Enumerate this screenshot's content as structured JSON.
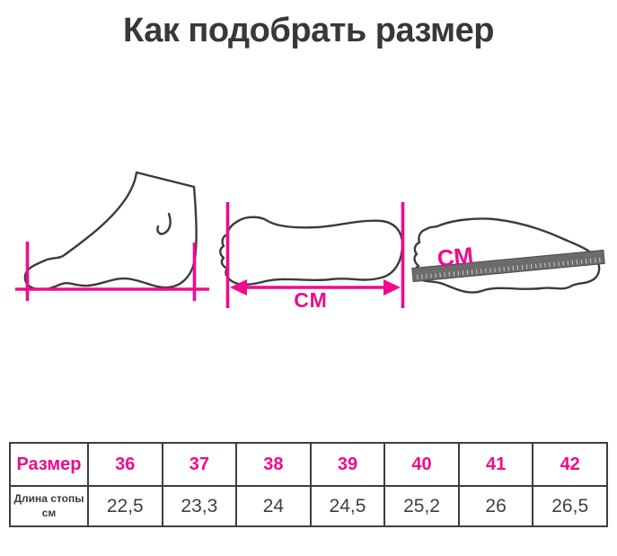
{
  "page": {
    "title": "Как подобрать размер"
  },
  "colors": {
    "accent_pink": "#ee0b8c",
    "outline_ink": "#3b3b3b",
    "ruler_gray": "#6c6c6c",
    "background": "#ffffff"
  },
  "illustrations": {
    "foot_side": {
      "description": "foot side profile with length measuring lines"
    },
    "sole_arrow": {
      "label": "СМ"
    },
    "sole_ruler": {
      "label": "СМ"
    }
  },
  "size_table": {
    "header_label": "Размер",
    "row_label_line1": "Длина стопы",
    "row_label_line2": "см",
    "sizes": [
      "36",
      "37",
      "38",
      "39",
      "40",
      "41",
      "42"
    ],
    "lengths": [
      "22,5",
      "23,3",
      "24",
      "24,5",
      "25,2",
      "26",
      "26,5"
    ]
  }
}
